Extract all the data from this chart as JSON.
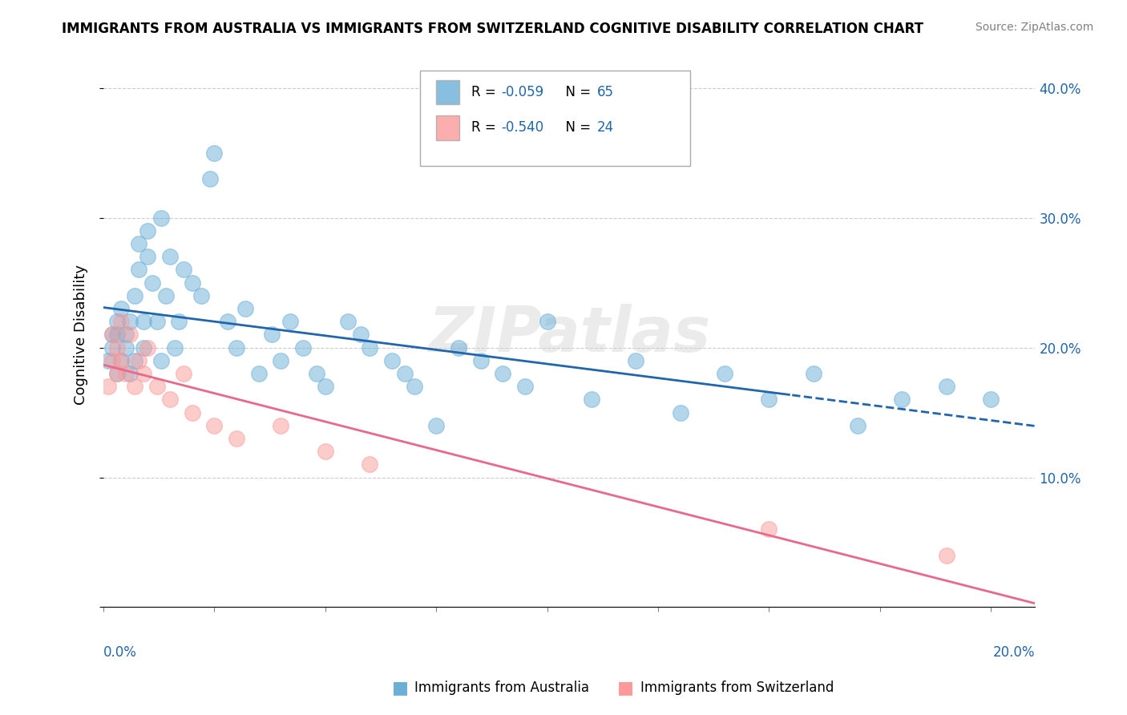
{
  "title": "IMMIGRANTS FROM AUSTRALIA VS IMMIGRANTS FROM SWITZERLAND COGNITIVE DISABILITY CORRELATION CHART",
  "source": "Source: ZipAtlas.com",
  "ylabel": "Cognitive Disability",
  "ylim": [
    0.0,
    0.42
  ],
  "xlim": [
    0.0,
    0.21
  ],
  "ytick_vals": [
    0.0,
    0.1,
    0.2,
    0.3,
    0.4
  ],
  "ytick_labels": [
    "",
    "10.0%",
    "20.0%",
    "30.0%",
    "40.0%"
  ],
  "color_australia": "#6baed6",
  "color_switzerland": "#fb9a99",
  "line_color_australia": "#2166ac",
  "line_color_switzerland": "#e8698a",
  "watermark": "ZIPatlas",
  "australia_x": [
    0.001,
    0.002,
    0.002,
    0.003,
    0.003,
    0.003,
    0.004,
    0.004,
    0.005,
    0.005,
    0.006,
    0.006,
    0.007,
    0.007,
    0.008,
    0.008,
    0.009,
    0.009,
    0.01,
    0.01,
    0.011,
    0.012,
    0.013,
    0.013,
    0.014,
    0.015,
    0.016,
    0.017,
    0.018,
    0.02,
    0.022,
    0.024,
    0.025,
    0.028,
    0.03,
    0.032,
    0.035,
    0.038,
    0.04,
    0.042,
    0.045,
    0.048,
    0.05,
    0.055,
    0.058,
    0.06,
    0.065,
    0.068,
    0.07,
    0.075,
    0.08,
    0.085,
    0.09,
    0.095,
    0.1,
    0.11,
    0.12,
    0.13,
    0.14,
    0.15,
    0.16,
    0.17,
    0.18,
    0.19,
    0.2
  ],
  "australia_y": [
    0.19,
    0.2,
    0.21,
    0.18,
    0.21,
    0.22,
    0.19,
    0.23,
    0.2,
    0.21,
    0.22,
    0.18,
    0.24,
    0.19,
    0.28,
    0.26,
    0.22,
    0.2,
    0.29,
    0.27,
    0.25,
    0.22,
    0.3,
    0.19,
    0.24,
    0.27,
    0.2,
    0.22,
    0.26,
    0.25,
    0.24,
    0.33,
    0.35,
    0.22,
    0.2,
    0.23,
    0.18,
    0.21,
    0.19,
    0.22,
    0.2,
    0.18,
    0.17,
    0.22,
    0.21,
    0.2,
    0.19,
    0.18,
    0.17,
    0.14,
    0.2,
    0.19,
    0.18,
    0.17,
    0.22,
    0.16,
    0.19,
    0.15,
    0.18,
    0.16,
    0.18,
    0.14,
    0.16,
    0.17,
    0.16
  ],
  "switzerland_x": [
    0.001,
    0.002,
    0.002,
    0.003,
    0.003,
    0.004,
    0.004,
    0.005,
    0.006,
    0.007,
    0.008,
    0.009,
    0.01,
    0.012,
    0.015,
    0.018,
    0.02,
    0.025,
    0.03,
    0.04,
    0.05,
    0.06,
    0.15,
    0.19
  ],
  "switzerland_y": [
    0.17,
    0.19,
    0.21,
    0.18,
    0.2,
    0.19,
    0.22,
    0.18,
    0.21,
    0.17,
    0.19,
    0.18,
    0.2,
    0.17,
    0.16,
    0.18,
    0.15,
    0.14,
    0.13,
    0.14,
    0.12,
    0.11,
    0.06,
    0.04
  ]
}
